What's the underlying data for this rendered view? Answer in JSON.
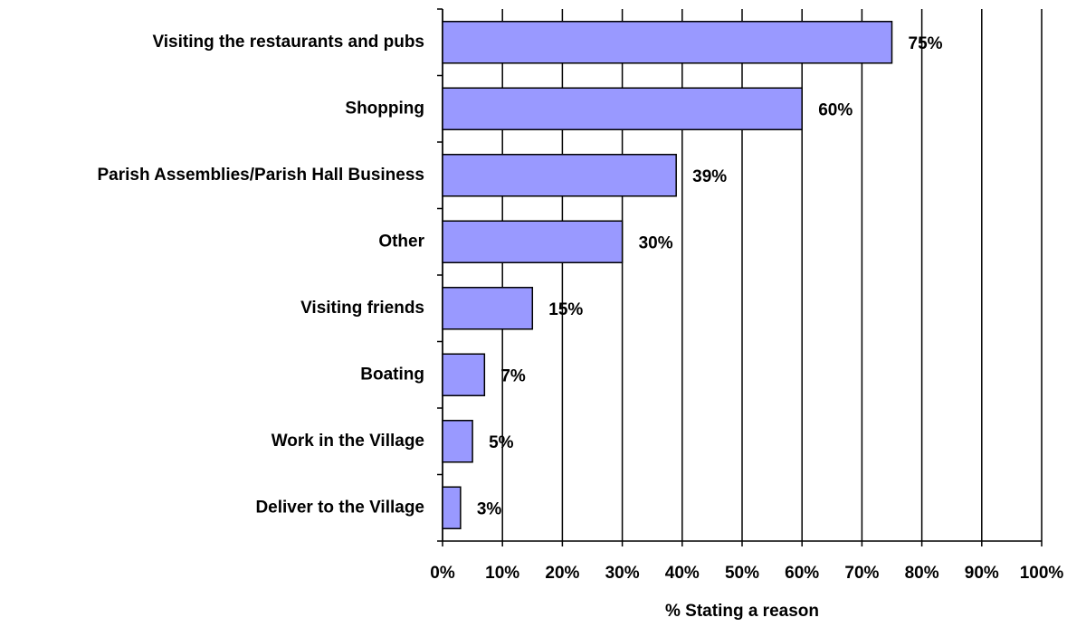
{
  "chart_data": {
    "type": "bar",
    "orientation": "horizontal",
    "x_label": "% Stating a reason",
    "categories": [
      "Visiting the restaurants and pubs",
      "Shopping",
      "Parish Assemblies/Parish Hall Business",
      "Other",
      "Visiting friends",
      "Boating",
      "Work in the Village",
      "Deliver to the Village"
    ],
    "values": [
      75,
      60,
      39,
      30,
      15,
      7,
      5,
      3
    ],
    "value_labels": [
      "75%",
      "60%",
      "39%",
      "30%",
      "15%",
      "7%",
      "5%",
      "3%"
    ],
    "color": "#9999ff",
    "xlim": [
      0,
      100
    ],
    "xticks": [
      {
        "value": 0,
        "label": "0%"
      },
      {
        "value": 10,
        "label": "10%"
      },
      {
        "value": 20,
        "label": "20%"
      },
      {
        "value": 30,
        "label": "30%"
      },
      {
        "value": 40,
        "label": "40%"
      },
      {
        "value": 50,
        "label": "50%"
      },
      {
        "value": 60,
        "label": "60%"
      },
      {
        "value": 70,
        "label": "70%"
      },
      {
        "value": 80,
        "label": "80%"
      },
      {
        "value": 90,
        "label": "90%"
      },
      {
        "value": 100,
        "label": "100%"
      }
    ],
    "grid": true
  }
}
